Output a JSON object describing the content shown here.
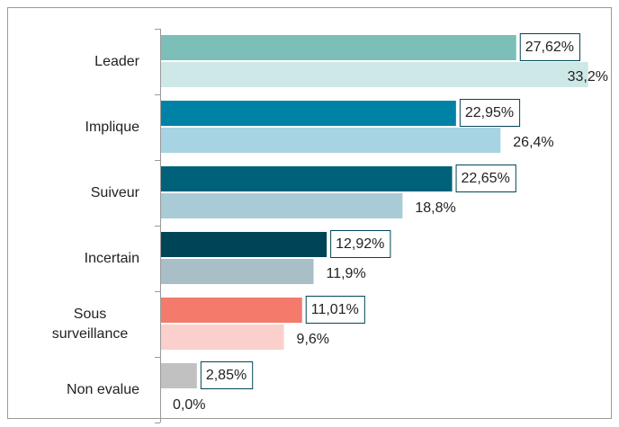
{
  "chart_data": {
    "type": "barh",
    "categories": [
      "Leader",
      "Implique",
      "Suiveur",
      "Incertain",
      "Sous surveillance",
      "Non evalue"
    ],
    "series": [
      {
        "colors": [
          "#7bbfb8",
          "#0082a6",
          "#00617a",
          "#004457",
          "#f47a6c",
          "#c1c1c1"
        ],
        "values": [
          27.62,
          22.95,
          22.65,
          12.92,
          11.01,
          2.85
        ],
        "value_labels": [
          "27,62%",
          "22,95%",
          "22,65%",
          "12,92%",
          "11,01%",
          "2,85%"
        ]
      },
      {
        "colors": [
          "#cde8e6",
          "#a7d3e2",
          "#a8cbd6",
          "#a8bfc8",
          "#fbd0cc",
          "#e6e6e6"
        ],
        "values": [
          33.2,
          26.4,
          18.8,
          11.9,
          9.6,
          0.0
        ],
        "value_labels": [
          "33,2%",
          "26,4%",
          "18,8%",
          "11,9%",
          "9,6%",
          "0,0%"
        ]
      }
    ],
    "xlim": [
      0,
      33.5
    ]
  }
}
